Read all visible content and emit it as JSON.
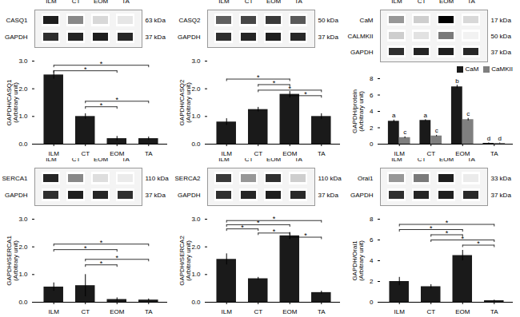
{
  "chart_data": [
    {
      "type": "bar",
      "categories": [
        "ILM",
        "CT",
        "EOM",
        "TA"
      ],
      "ylabel": "GAPDH/CASQ1\n(Arbitrary unit)",
      "values": [
        2.5,
        1.0,
        0.2,
        0.2
      ],
      "errors": [
        0.15,
        0.1,
        0.08,
        0.06
      ],
      "color": "#1a1a1a",
      "ylim": [
        0,
        3
      ],
      "yticks": [
        0,
        1,
        2,
        3
      ],
      "significance": [
        {
          "from": "ILM",
          "to": "TA",
          "y": 2.85,
          "label": "*"
        },
        {
          "from": "ILM",
          "to": "EOM",
          "y": 2.65,
          "label": "*"
        },
        {
          "from": "CT",
          "to": "TA",
          "y": 1.55,
          "label": "*"
        },
        {
          "from": "CT",
          "to": "EOM",
          "y": 1.35,
          "label": "*"
        }
      ],
      "blot": [
        {
          "label": "CASQ1",
          "kda": "63 kDa",
          "intensities": [
            0.9,
            0.55,
            0.25,
            0.18
          ]
        },
        {
          "label": "GAPDH",
          "kda": "37 kDa",
          "intensities": [
            0.85,
            0.88,
            0.9,
            0.87
          ]
        }
      ]
    },
    {
      "type": "bar",
      "categories": [
        "ILM",
        "CT",
        "EOM",
        "TA"
      ],
      "ylabel": "GAPDH/CASQ2\n(Arbitrary unit)",
      "values": [
        0.8,
        1.25,
        1.8,
        1.0
      ],
      "errors": [
        0.12,
        0.08,
        0.1,
        0.1
      ],
      "color": "#1a1a1a",
      "ylim": [
        0,
        3
      ],
      "yticks": [
        0,
        1,
        2,
        3
      ],
      "significance": [
        {
          "from": "ILM",
          "to": "EOM",
          "y": 2.35,
          "label": "*"
        },
        {
          "from": "CT",
          "to": "EOM",
          "y": 2.15,
          "label": "*"
        },
        {
          "from": "CT",
          "to": "TA",
          "y": 1.95,
          "label": "*"
        },
        {
          "from": "EOM",
          "to": "TA",
          "y": 1.75,
          "label": "*"
        }
      ],
      "blot": [
        {
          "label": "CASQ2",
          "kda": "50 kDa",
          "intensities": [
            0.7,
            0.78,
            0.82,
            0.72
          ]
        },
        {
          "label": "GAPDH",
          "kda": "37 kDa",
          "intensities": [
            0.85,
            0.88,
            0.9,
            0.87
          ]
        }
      ]
    },
    {
      "type": "bar",
      "categories": [
        "ILM",
        "CT",
        "EOM",
        "TA"
      ],
      "ylabel": "GAPDH/protein\n(Arbitrary unit)",
      "series": [
        {
          "name": "CaM",
          "color": "#1a1a1a",
          "values": [
            2.8,
            2.9,
            7.0,
            0.1
          ],
          "errors": [
            0.15,
            0.1,
            0.2,
            0.05
          ],
          "letter_labels": [
            "a",
            "a",
            "b",
            "d"
          ]
        },
        {
          "name": "CaMKII",
          "color": "#7f7f7f",
          "values": [
            0.8,
            1.0,
            3.0,
            0.1
          ],
          "errors": [
            0.1,
            0.08,
            0.15,
            0.04
          ],
          "letter_labels": [
            "c",
            "c",
            "c",
            "d"
          ]
        }
      ],
      "legend": "upper right",
      "ylim": [
        0,
        8
      ],
      "yticks": [
        0,
        2,
        4,
        6,
        8
      ],
      "blot": [
        {
          "label": "CaM",
          "kda": "17 kDa",
          "intensities": [
            0.5,
            0.3,
            1.0,
            0.25
          ]
        },
        {
          "label": "CALMKII",
          "kda": "50 kDa",
          "intensities": [
            0.3,
            0.2,
            0.6,
            0.1
          ]
        },
        {
          "label": "GAPDH",
          "kda": "37 kDa",
          "intensities": [
            0.85,
            0.88,
            0.9,
            0.87
          ]
        }
      ]
    },
    {
      "type": "bar",
      "categories": [
        "ILM",
        "CT",
        "EOM",
        "TA"
      ],
      "ylabel": "GAPDH/SERCA1\n(Arbitrary unit)",
      "values": [
        0.55,
        0.6,
        0.1,
        0.08
      ],
      "errors": [
        0.15,
        0.4,
        0.06,
        0.04
      ],
      "color": "#1a1a1a",
      "ylim": [
        0,
        3
      ],
      "yticks": [
        0,
        1,
        2,
        3
      ],
      "significance": [
        {
          "from": "ILM",
          "to": "TA",
          "y": 2.1,
          "label": "*"
        },
        {
          "from": "ILM",
          "to": "EOM",
          "y": 1.9,
          "label": "*"
        },
        {
          "from": "CT",
          "to": "TA",
          "y": 1.55,
          "label": "*"
        },
        {
          "from": "CT",
          "to": "EOM",
          "y": 1.35,
          "label": "*"
        }
      ],
      "blot": [
        {
          "label": "SERCA1",
          "kda": "110 kDa",
          "intensities": [
            0.88,
            0.55,
            0.22,
            0.15
          ]
        },
        {
          "label": "GAPDH",
          "kda": "37 kDa",
          "intensities": [
            0.85,
            0.9,
            0.88,
            0.85
          ]
        }
      ]
    },
    {
      "type": "bar",
      "categories": [
        "ILM",
        "CT",
        "EOM",
        "TA"
      ],
      "ylabel": "GAPDH/SERCA2\n(Arbitrary unit)",
      "values": [
        1.55,
        0.85,
        2.4,
        0.35
      ],
      "errors": [
        0.2,
        0.05,
        0.12,
        0.05
      ],
      "color": "#1a1a1a",
      "ylim": [
        0,
        3
      ],
      "yticks": [
        0,
        1,
        2,
        3
      ],
      "significance": [
        {
          "from": "ILM",
          "to": "TA",
          "y": 2.95,
          "label": "*"
        },
        {
          "from": "ILM",
          "to": "EOM",
          "y": 2.8,
          "label": "*"
        },
        {
          "from": "ILM",
          "to": "CT",
          "y": 2.65,
          "label": "*"
        },
        {
          "from": "CT",
          "to": "EOM",
          "y": 2.5,
          "label": "*"
        },
        {
          "from": "EOM",
          "to": "TA",
          "y": 2.35,
          "label": "*"
        }
      ],
      "blot": [
        {
          "label": "SERCA2",
          "kda": "110 kDa",
          "intensities": [
            0.82,
            0.5,
            0.85,
            0.3
          ]
        },
        {
          "label": "GAPDH",
          "kda": "37 kDa",
          "intensities": [
            0.85,
            0.88,
            0.9,
            0.87
          ]
        }
      ]
    },
    {
      "type": "bar",
      "categories": [
        "ILM",
        "CT",
        "EOM",
        "TA"
      ],
      "ylabel": "GAPDH/Orai1\n(Arbitrary unit)",
      "values": [
        2.0,
        1.5,
        4.5,
        0.15
      ],
      "errors": [
        0.4,
        0.2,
        0.5,
        0.06
      ],
      "color": "#1a1a1a",
      "ylim": [
        0,
        8
      ],
      "yticks": [
        0,
        2,
        4,
        6,
        8
      ],
      "significance": [
        {
          "from": "ILM",
          "to": "TA",
          "y": 7.5,
          "label": "*"
        },
        {
          "from": "ILM",
          "to": "EOM",
          "y": 7.0,
          "label": "*"
        },
        {
          "from": "CT",
          "to": "EOM",
          "y": 6.5,
          "label": "*"
        },
        {
          "from": "CT",
          "to": "TA",
          "y": 6.0,
          "label": "*"
        },
        {
          "from": "EOM",
          "to": "TA",
          "y": 5.5,
          "label": "*"
        }
      ],
      "blot": [
        {
          "label": "Orai1",
          "kda": "33 kDa",
          "intensities": [
            0.5,
            0.6,
            0.9,
            0.15
          ]
        },
        {
          "label": "GAPDH",
          "kda": "37 kDa",
          "intensities": [
            0.85,
            0.88,
            0.9,
            0.87
          ]
        }
      ]
    }
  ]
}
